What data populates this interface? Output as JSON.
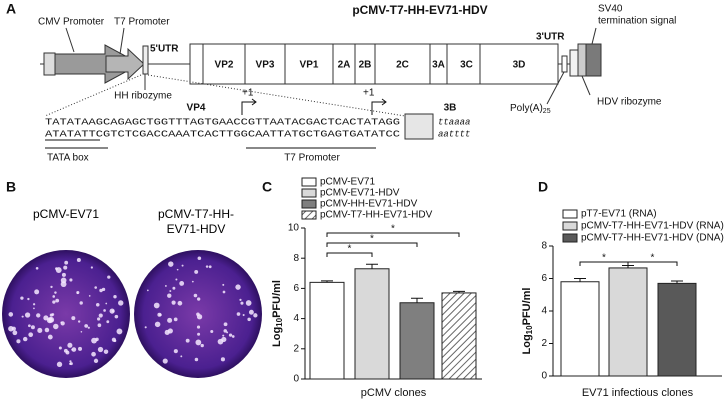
{
  "panels": {
    "a": "A",
    "b": "B",
    "c": "C",
    "d": "D"
  },
  "diagram": {
    "title": "pCMV-T7-HH-EV71-HDV",
    "cmv_promoter": "CMV Promoter",
    "t7_promoter": "T7 Promoter",
    "utr5": "5'UTR",
    "hh_ribozyme": "HH ribozyme",
    "genes": [
      "VP2",
      "VP3",
      "VP1",
      "2A",
      "2B",
      "2C",
      "3A",
      "3C",
      "3D"
    ],
    "vp4": "VP4",
    "b3": "3B",
    "utr3": "3'UTR",
    "sv40": [
      "SV40",
      "termination signal"
    ],
    "poly_a": {
      "text": "Poly(A)",
      "sub": "25"
    },
    "hdv_ribozyme": "HDV ribozyme",
    "start_sites": [
      "+1",
      "+1"
    ],
    "sequence": [
      "TATATAAGCAGAGCTGGTTTAGTGAACCGTTAATACGACTCACTATAGG",
      "ATATATTCGTCTCGACCAAATCACTTGGCAATTATGCTGAGTGATATCC"
    ],
    "tail": [
      "ttaaaa",
      "aatttt"
    ],
    "tata_box": "TATA box",
    "t7_promoter_lower": "T7 Promoter"
  },
  "photos": {
    "labels": [
      "pCMV-EV71",
      "pCMV-T7-HH-EV71-HDV"
    ]
  },
  "chart_data": [
    {
      "type": "bar",
      "categories": [
        "pCMV-EV71",
        "pCMV-EV71-HDV",
        "pCMV-HH-EV71-HDV",
        "pCMV-T7-HH-EV71-HDV"
      ],
      "values": [
        6.4,
        7.3,
        5.05,
        5.7
      ],
      "errors": [
        0.1,
        0.3,
        0.3,
        0.1
      ],
      "colors": [
        "#ffffff",
        "#d9d9d9",
        "#7f7f7f",
        "#ffffff"
      ],
      "hatch": [
        false,
        false,
        false,
        true
      ],
      "x_label": "pCMV clones",
      "y_label": {
        "base": "Log",
        "sub": "10",
        "rest": "PFU/ml"
      },
      "ylim": [
        0,
        10
      ],
      "yticks": [
        0,
        2,
        4,
        6,
        8,
        10
      ],
      "comparisons": [
        {
          "from": 0,
          "to": 1,
          "label": "*"
        },
        {
          "from": 0,
          "to": 2,
          "label": "*"
        },
        {
          "from": 0,
          "to": 3,
          "label": "*"
        }
      ]
    },
    {
      "type": "bar",
      "categories": [
        "pT7-EV71 (RNA)",
        "pCMV-T7-HH-EV71-HDV (RNA)",
        "pCMV-T7-HH-EV71-HDV (DNA)"
      ],
      "values": [
        5.8,
        6.65,
        5.7
      ],
      "errors": [
        0.2,
        0.15,
        0.15
      ],
      "colors": [
        "#ffffff",
        "#d9d9d9",
        "#595959"
      ],
      "hatch": [
        false,
        false,
        false
      ],
      "x_label": "EV71 infectious clones",
      "y_label": {
        "base": "Log",
        "sub": "10",
        "rest": "PFU/ml"
      },
      "ylim": [
        0,
        8
      ],
      "yticks": [
        0,
        2,
        4,
        6,
        8
      ],
      "comparisons": [
        {
          "from": 0,
          "to": 1,
          "label": "*"
        },
        {
          "from": 1,
          "to": 2,
          "label": "*"
        }
      ]
    }
  ]
}
